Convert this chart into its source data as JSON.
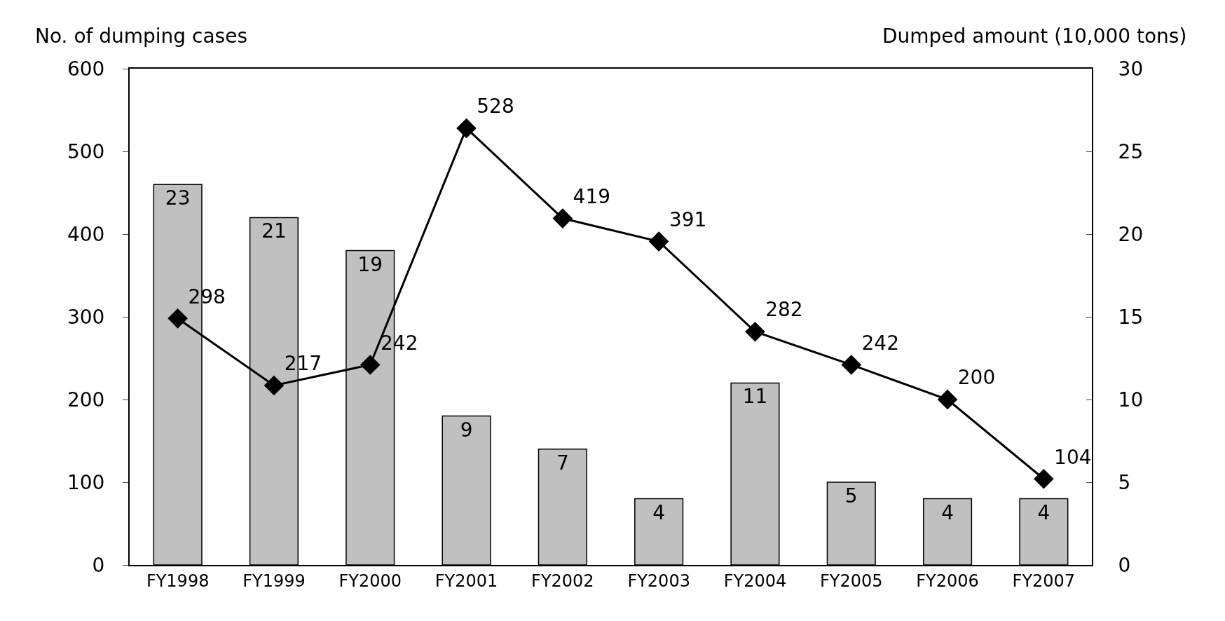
{
  "chart_data": {
    "type": "bar",
    "ylabel": "No. of dumping cases",
    "y2label": "Dumped amount (10,000 tons)",
    "categories": [
      "FY1998",
      "FY1999",
      "FY2000",
      "FY2001",
      "FY2002",
      "FY2003",
      "FY2004",
      "FY2005",
      "FY2006",
      "FY2007"
    ],
    "series": [
      {
        "axis": "y2",
        "color": "#c0c0c0",
        "values": [
          23,
          21,
          19,
          9,
          7,
          4,
          11,
          5,
          4,
          4
        ]
      },
      {
        "type": "line",
        "axis": "y",
        "color": "#000000",
        "marker": "diamond",
        "values": [
          298,
          217,
          242,
          528,
          419,
          391,
          282,
          242,
          200,
          104
        ]
      }
    ],
    "ylim": [
      0,
      600
    ],
    "yticks": [
      0,
      100,
      200,
      300,
      400,
      500,
      600
    ],
    "y2lim": [
      0,
      30
    ],
    "y2ticks": [
      0,
      5,
      10,
      15,
      20,
      25,
      30
    ],
    "data_labels": true,
    "grid": false,
    "legend": false
  }
}
